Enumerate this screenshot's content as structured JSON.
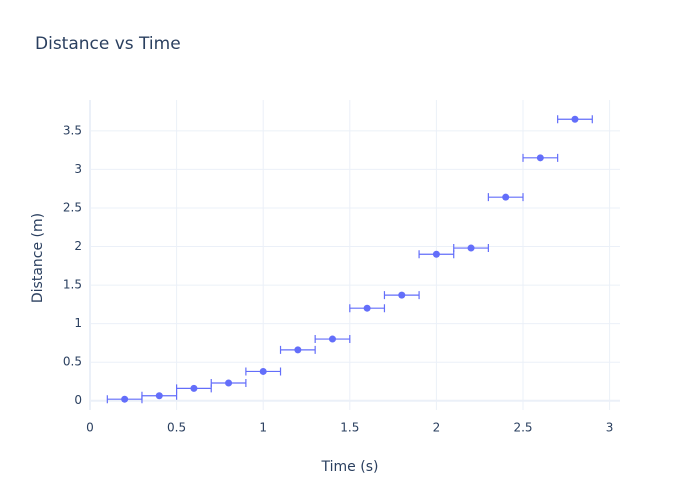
{
  "chart_data": {
    "type": "scatter",
    "title": "Distance vs Time",
    "x_label": "Time (s)",
    "y_label": "Distance (m)",
    "series": [
      {
        "color": "#636efa",
        "x": [
          0.2,
          0.4,
          0.6,
          0.8,
          1.0,
          1.2,
          1.4,
          1.6,
          1.8,
          2.0,
          2.2,
          2.4,
          2.6,
          2.8
        ],
        "values": [
          0.02,
          0.065,
          0.16,
          0.23,
          0.38,
          0.66,
          0.8,
          1.2,
          1.37,
          1.9,
          1.98,
          2.64,
          3.15,
          3.65
        ],
        "error_x": [
          0.1,
          0.1,
          0.1,
          0.1,
          0.1,
          0.1,
          0.1,
          0.1,
          0.1,
          0.1,
          0.1,
          0.1,
          0.1,
          0.1
        ]
      }
    ],
    "xlim": [
      0,
      3.06
    ],
    "ylim": [
      -0.12,
      3.9
    ],
    "xticks": [
      0,
      0.5,
      1,
      1.5,
      2,
      2.5,
      3
    ],
    "yticks": [
      0,
      0.5,
      1,
      1.5,
      2,
      2.5,
      3,
      3.5
    ],
    "grid": true
  }
}
